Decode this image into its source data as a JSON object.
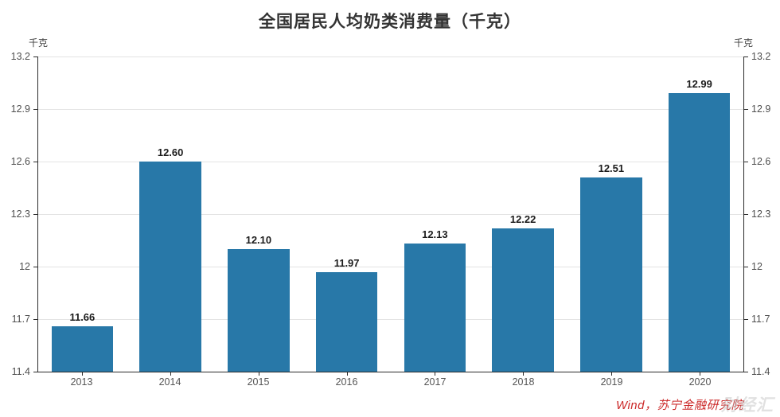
{
  "header": {
    "title": "全国居民人均奶类消费量（千克）"
  },
  "axes": {
    "unit_left": "千克",
    "unit_right": "千克"
  },
  "footer": {
    "source": "Wind，苏宁金融研究院",
    "watermark": "财经汇"
  },
  "colors": {
    "bar": "#2878a8",
    "grid": "#e3e3e3",
    "axis": "#2b2b2b",
    "tick_text": "#4f4f4f",
    "value_label": "#1c1c1c",
    "source_red": "#cc2a2a"
  },
  "chart_data": {
    "type": "bar",
    "title": "全国居民人均奶类消费量（千克）",
    "categories": [
      "2013",
      "2014",
      "2015",
      "2016",
      "2017",
      "2018",
      "2019",
      "2020"
    ],
    "values": [
      11.66,
      12.6,
      12.1,
      11.97,
      12.13,
      12.22,
      12.51,
      12.99
    ],
    "value_labels": [
      "11.66",
      "12.60",
      "12.10",
      "11.97",
      "12.13",
      "12.22",
      "12.51",
      "12.99"
    ],
    "xlabel": "",
    "ylabel": "千克",
    "ylim": [
      11.4,
      13.2
    ],
    "ytick_values": [
      11.4,
      11.7,
      12.0,
      12.3,
      12.6,
      12.9,
      13.2
    ],
    "yticks": [
      "11.4",
      "11.7",
      "12",
      "12.3",
      "12.6",
      "12.9",
      "13.2"
    ],
    "grid": true,
    "legend": false,
    "axis_mirrored": true
  }
}
